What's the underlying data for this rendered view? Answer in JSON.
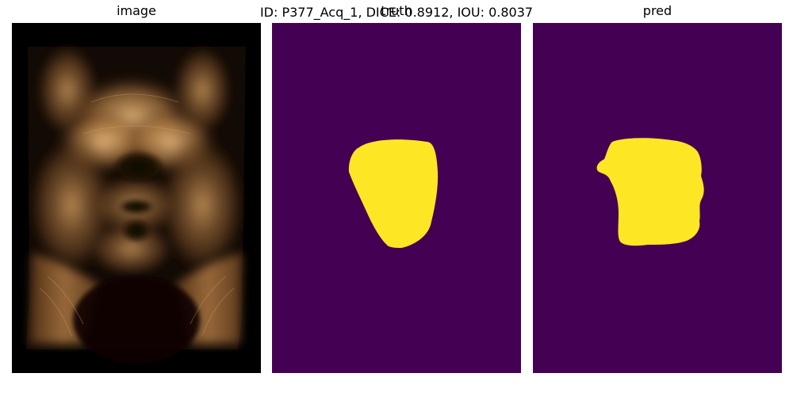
{
  "figure": {
    "suptitle": "ID: P377_Acq_1, DICE: 0.8912, IOU: 0.8037",
    "panels": [
      {
        "title": "image"
      },
      {
        "title": "truth"
      },
      {
        "title": "pred"
      }
    ]
  },
  "metrics": {
    "case_id": "P377_Acq_1",
    "dice": 0.8912,
    "iou": 0.8037
  },
  "colors": {
    "mask_background": "#440154",
    "mask_foreground": "#fde725",
    "image_background": "#000000",
    "image_tone": "#c8955a"
  }
}
